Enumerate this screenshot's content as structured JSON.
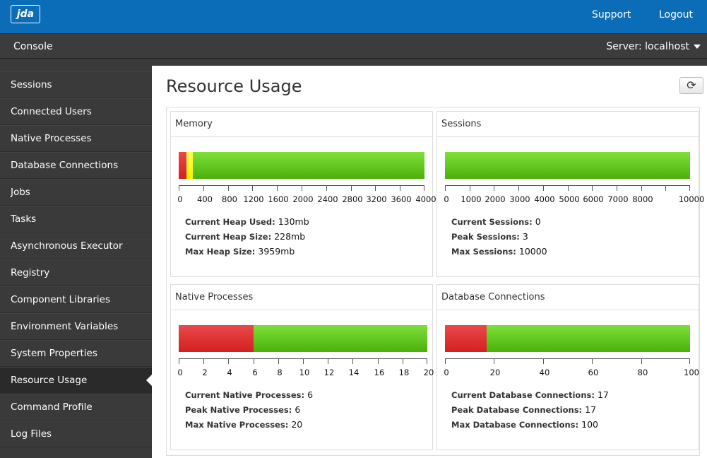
{
  "header": {
    "logo": "jda",
    "support": "Support",
    "logout": "Logout"
  },
  "consolebar": {
    "title": "Console",
    "server": "Server: localhost"
  },
  "sidebar": {
    "items": [
      {
        "label": "Sessions"
      },
      {
        "label": "Connected Users"
      },
      {
        "label": "Native Processes"
      },
      {
        "label": "Database Connections"
      },
      {
        "label": "Jobs"
      },
      {
        "label": "Tasks"
      },
      {
        "label": "Asynchronous Executor"
      },
      {
        "label": "Registry"
      },
      {
        "label": "Component Libraries"
      },
      {
        "label": "Environment Variables"
      },
      {
        "label": "System Properties"
      },
      {
        "label": "Resource Usage"
      },
      {
        "label": "Command Profile"
      },
      {
        "label": "Log Files"
      }
    ],
    "active": "Resource Usage"
  },
  "main": {
    "title": "Resource Usage",
    "refresh_icon": "refresh-icon",
    "panels": [
      {
        "title": "Memory",
        "max": 4000,
        "used": 130,
        "size": 228,
        "ticks": [
          "0",
          "400",
          "800",
          "1200",
          "1600",
          "2000",
          "2400",
          "2800",
          "3200",
          "3600",
          "4000"
        ],
        "stats": [
          {
            "label": "Current Heap Used:",
            "value": "130mb"
          },
          {
            "label": "Current Heap Size:",
            "value": "228mb"
          },
          {
            "label": "Max Heap Size:",
            "value": "3959mb"
          }
        ]
      },
      {
        "title": "Sessions",
        "max": 10000,
        "used": 0,
        "ticks": [
          "0",
          "1000",
          "2000",
          "3000",
          "4000",
          "5000",
          "6000",
          "7000",
          "8000",
          "",
          "10000"
        ],
        "stats": [
          {
            "label": "Current Sessions:",
            "value": "0"
          },
          {
            "label": "Peak Sessions:",
            "value": "3"
          },
          {
            "label": "Max Sessions:",
            "value": "10000"
          }
        ]
      },
      {
        "title": "Native Processes",
        "max": 20,
        "used": 6,
        "ticks": [
          "0",
          "2",
          "4",
          "6",
          "8",
          "10",
          "12",
          "14",
          "16",
          "18",
          "20"
        ],
        "stats": [
          {
            "label": "Current Native Processes:",
            "value": "6"
          },
          {
            "label": "Peak Native Processes:",
            "value": "6"
          },
          {
            "label": "Max Native Processes:",
            "value": "20"
          }
        ]
      },
      {
        "title": "Database Connections",
        "max": 100,
        "used": 17,
        "ticks": [
          "0",
          "20",
          "40",
          "60",
          "80",
          "100"
        ],
        "stats": [
          {
            "label": "Current Database Connections:",
            "value": "17"
          },
          {
            "label": "Peak Database Connections:",
            "value": "17"
          },
          {
            "label": "Max Database Connections:",
            "value": "100"
          }
        ]
      }
    ]
  },
  "colors": {
    "header_blue": "#0b6cb8",
    "sidebar_bg": "#3a3a3a",
    "bar_red": "#d41f1f",
    "bar_yellow": "#f2f200",
    "bar_green": "#4bb00c"
  }
}
